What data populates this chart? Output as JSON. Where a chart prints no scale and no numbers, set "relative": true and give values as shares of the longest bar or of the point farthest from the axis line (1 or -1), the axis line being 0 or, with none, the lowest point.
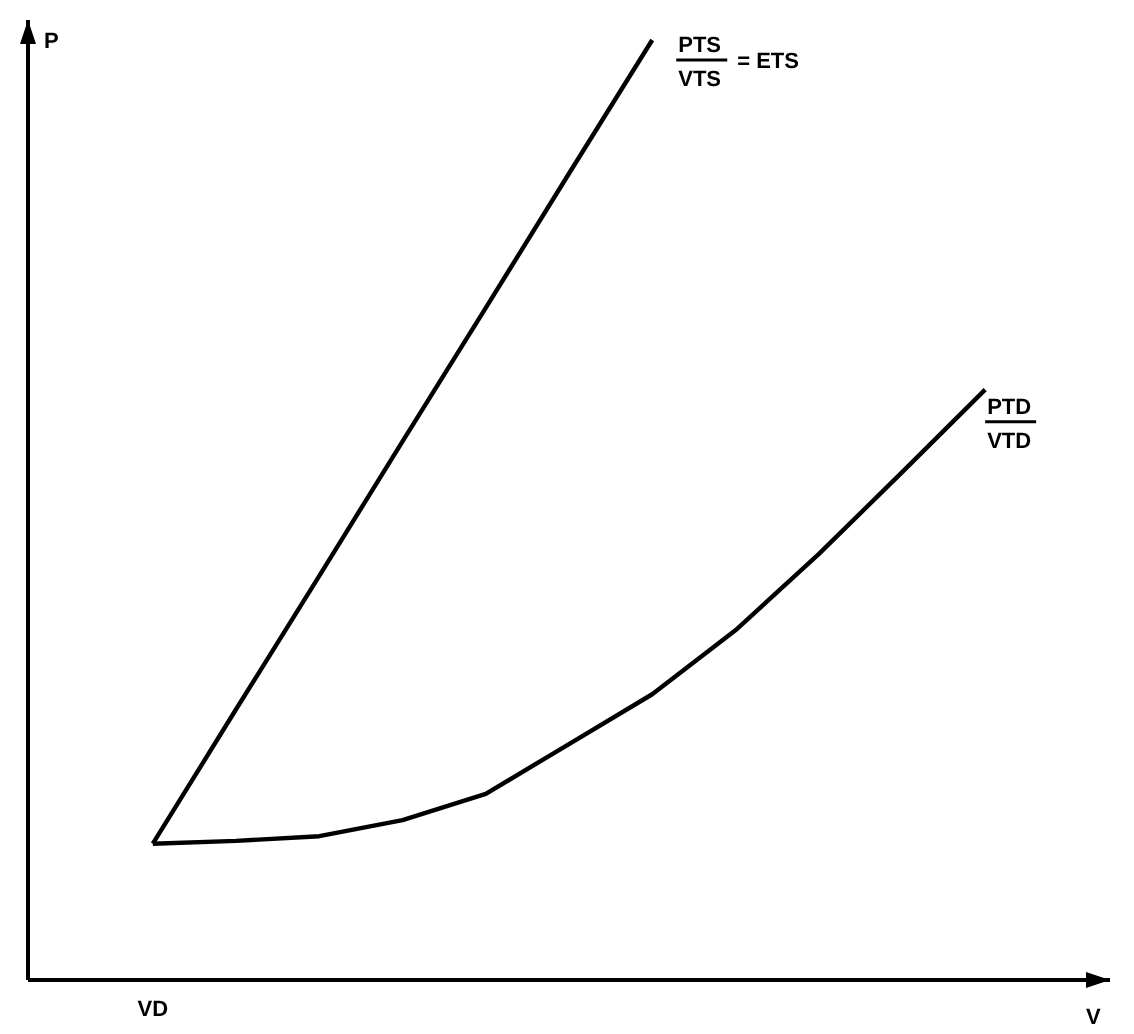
{
  "chart_data": {
    "type": "line",
    "relative": true,
    "xlabel": "V",
    "ylabel": "P",
    "legend": false,
    "marker": "none",
    "line_style": "solid",
    "categories": [
      null,
      null,
      null,
      null,
      null,
      null,
      null,
      null,
      null,
      null,
      null
    ],
    "series": [
      {
        "name": "PTS/VTS = ETS",
        "color": "#000000",
        "values": [
          0.145,
          0.288,
          0.43,
          0.573,
          0.715,
          0.858,
          1,
          null,
          null,
          null,
          null
        ]
      },
      {
        "name": "PTD/VTD",
        "color": "#000000",
        "values": [
          0.145,
          0.148,
          0.153,
          0.17,
          0.198,
          0.251,
          0.304,
          0.372,
          0.453,
          0.54,
          0.628
        ]
      }
    ],
    "annotations": [
      "VD"
    ]
  }
}
